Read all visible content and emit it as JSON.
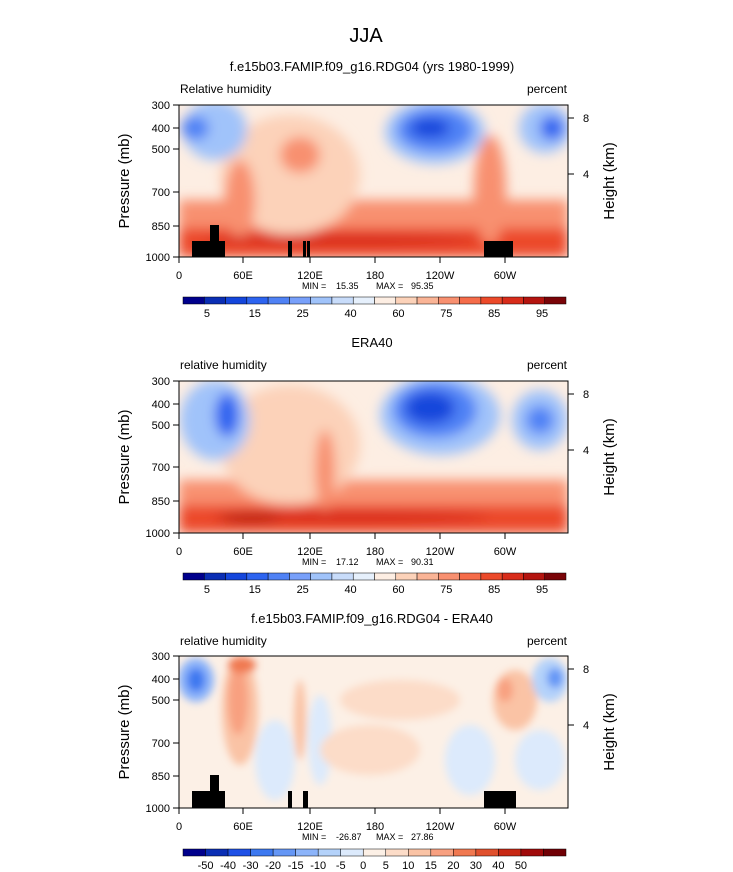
{
  "figure_title": "JJA",
  "chart_data": [
    {
      "type": "heatmap",
      "title": "f.e15b03.FAMIP.f09_g16.RDG04 (yrs 1980-1999)",
      "left_label": "Relative humidity",
      "right_label": "percent",
      "ylabel": "Pressure (mb)",
      "y2label": "Height (km)",
      "x_ticks": [
        "0",
        "60E",
        "120E",
        "180",
        "120W",
        "60W"
      ],
      "y_ticks": [
        "300",
        "400",
        "500",
        "700",
        "850",
        "1000"
      ],
      "y2_ticks": [
        "8",
        "4"
      ],
      "stats": {
        "min_label": "MIN =",
        "min": "15.35",
        "max_label": "MAX =",
        "max": "95.35"
      },
      "colorbar_labels": [
        "5",
        "15",
        "25",
        "40",
        "60",
        "75",
        "85",
        "95"
      ],
      "colors": [
        "#00008c",
        "#0a2eb4",
        "#1446dc",
        "#2d64f0",
        "#5082f5",
        "#78a0fa",
        "#a0c3fa",
        "#c8dcfa",
        "#e6f0fc",
        "#fdeee3",
        "#fcd2b9",
        "#fab496",
        "#f89070",
        "#f56c4a",
        "#ec4a2a",
        "#d82c1a",
        "#b4140f",
        "#7a0408"
      ],
      "ylim": [
        1000,
        300
      ]
    },
    {
      "type": "heatmap",
      "title": "ERA40",
      "left_label": "relative humidity",
      "right_label": "percent",
      "ylabel": "Pressure (mb)",
      "y2label": "Height (km)",
      "x_ticks": [
        "0",
        "60E",
        "120E",
        "180",
        "120W",
        "60W"
      ],
      "y_ticks": [
        "300",
        "400",
        "500",
        "700",
        "850",
        "1000"
      ],
      "y2_ticks": [
        "8",
        "4"
      ],
      "stats": {
        "min_label": "MIN =",
        "min": "17.12",
        "max_label": "MAX =",
        "max": "90.31"
      },
      "colorbar_labels": [
        "5",
        "15",
        "25",
        "40",
        "60",
        "75",
        "85",
        "95"
      ],
      "ylim": [
        1000,
        300
      ]
    },
    {
      "type": "heatmap",
      "title": "f.e15b03.FAMIP.f09_g16.RDG04 - ERA40",
      "left_label": "relative humidity",
      "right_label": "percent",
      "ylabel": "Pressure (mb)",
      "y2label": "Height (km)",
      "x_ticks": [
        "0",
        "60E",
        "120E",
        "180",
        "120W",
        "60W"
      ],
      "y_ticks": [
        "300",
        "400",
        "500",
        "700",
        "850",
        "1000"
      ],
      "y2_ticks": [
        "8",
        "4"
      ],
      "stats": {
        "min_label": "MIN =",
        "min": "-26.87",
        "max_label": "MAX =",
        "max": "27.86"
      },
      "colorbar_labels": [
        "-50",
        "-40",
        "-30",
        "-20",
        "-15",
        "-10",
        "-5",
        "0",
        "5",
        "10",
        "15",
        "20",
        "30",
        "40",
        "50"
      ],
      "colors": [
        "#00008c",
        "#0a2eb4",
        "#1e50e6",
        "#3c78f0",
        "#6496f5",
        "#8cb4fa",
        "#b4d2fa",
        "#dceafc",
        "#fcf0e6",
        "#fcdcc8",
        "#fac3a5",
        "#f8a080",
        "#f07850",
        "#e0502d",
        "#c82814",
        "#a00a0a",
        "#700005"
      ],
      "ylim": [
        1000,
        300
      ]
    }
  ]
}
